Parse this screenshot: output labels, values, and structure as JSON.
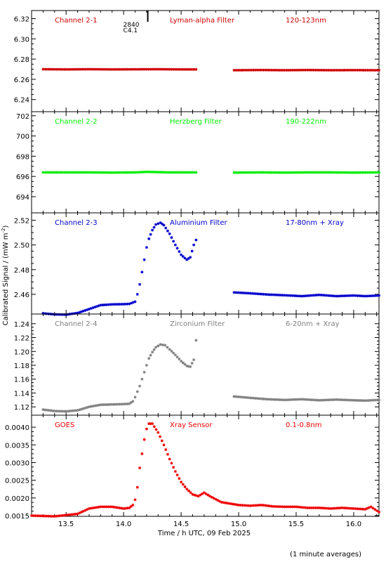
{
  "chart_data": [
    {
      "type": "scatter",
      "name": "Channel 2-1",
      "filter": "Lyman-alpha Filter",
      "band": "120-123nm",
      "color": "#d00000",
      "xlim": [
        13.2,
        16.22
      ],
      "ylim": [
        6.228,
        6.328
      ],
      "yticks": [
        6.24,
        6.26,
        6.28,
        6.3,
        6.32
      ],
      "ytick_labels": [
        "6.24",
        "6.26",
        "6.28",
        "6.30",
        "6.32"
      ],
      "marker": {
        "x": 14.21,
        "labels": [
          "2840",
          "C4.1"
        ]
      },
      "points": [
        [
          13.3,
          6.27
        ],
        [
          13.5,
          6.2698
        ],
        [
          13.7,
          6.27
        ],
        [
          13.9,
          6.2698
        ],
        [
          14.1,
          6.2699
        ],
        [
          14.3,
          6.27
        ],
        [
          14.5,
          6.2698
        ],
        [
          14.63,
          6.2698
        ],
        null,
        [
          14.96,
          6.269
        ],
        [
          15.2,
          6.2692
        ],
        [
          15.4,
          6.269
        ],
        [
          15.6,
          6.2692
        ],
        [
          15.8,
          6.269
        ],
        [
          16.0,
          6.2691
        ],
        [
          16.22,
          6.269
        ]
      ]
    },
    {
      "type": "scatter",
      "name": "Channel 2-2",
      "filter": "Herzberg Filter",
      "band": "190-222nm",
      "color": "#00ee00",
      "xlim": [
        13.2,
        16.22
      ],
      "ylim": [
        692.4,
        702.4
      ],
      "yticks": [
        694,
        696,
        698,
        700,
        702
      ],
      "ytick_labels": [
        "694",
        "696",
        "698",
        "700",
        "702"
      ],
      "points": [
        [
          13.3,
          696.4
        ],
        [
          13.5,
          696.4
        ],
        [
          13.7,
          696.4
        ],
        [
          13.9,
          696.38
        ],
        [
          14.1,
          696.4
        ],
        [
          14.2,
          696.45
        ],
        [
          14.4,
          696.4
        ],
        [
          14.63,
          696.4
        ],
        null,
        [
          14.96,
          696.38
        ],
        [
          15.2,
          696.4
        ],
        [
          15.4,
          696.38
        ],
        [
          15.6,
          696.4
        ],
        [
          15.8,
          696.4
        ],
        [
          16.0,
          696.38
        ],
        [
          16.22,
          696.4
        ]
      ]
    },
    {
      "type": "scatter",
      "name": "Channel 2-3",
      "filter": "Aluminium Filter",
      "band": "17-80nm + Xray",
      "color": "#0000cc",
      "xlim": [
        13.2,
        16.22
      ],
      "ylim": [
        2.444,
        2.526
      ],
      "yticks": [
        2.46,
        2.48,
        2.5,
        2.52
      ],
      "ytick_labels": [
        "2.46",
        "2.48",
        "2.50",
        "2.52"
      ],
      "points": [
        [
          13.3,
          2.4445
        ],
        [
          13.4,
          2.4437
        ],
        [
          13.5,
          2.4435
        ],
        [
          13.6,
          2.4448
        ],
        [
          13.7,
          2.448
        ],
        [
          13.8,
          2.4512
        ],
        [
          13.9,
          2.4518
        ],
        [
          14.0,
          2.452
        ],
        [
          14.05,
          2.4522
        ],
        [
          14.1,
          2.454
        ],
        [
          14.12,
          2.46
        ],
        [
          14.14,
          2.468
        ],
        [
          14.16,
          2.478
        ],
        [
          14.18,
          2.488
        ],
        [
          14.2,
          2.498
        ],
        [
          14.22,
          2.505
        ],
        [
          14.25,
          2.512
        ],
        [
          14.28,
          2.5165
        ],
        [
          14.32,
          2.518
        ],
        [
          14.35,
          2.516
        ],
        [
          14.4,
          2.509
        ],
        [
          14.45,
          2.5
        ],
        [
          14.5,
          2.492
        ],
        [
          14.55,
          2.488
        ],
        [
          14.58,
          2.49
        ],
        [
          14.61,
          2.5
        ],
        [
          14.63,
          2.504
        ],
        null,
        [
          14.96,
          2.4615
        ],
        [
          15.1,
          2.4608
        ],
        [
          15.25,
          2.4598
        ],
        [
          15.4,
          2.4592
        ],
        [
          15.55,
          2.4585
        ],
        [
          15.7,
          2.4595
        ],
        [
          15.85,
          2.4585
        ],
        [
          16.0,
          2.459
        ],
        [
          16.1,
          2.4585
        ],
        [
          16.22,
          2.459
        ]
      ]
    },
    {
      "type": "scatter",
      "name": "Channel 2-4",
      "filter": "Zirconium Filter",
      "band": "6-20nm + Xray",
      "color": "#808080",
      "xlim": [
        13.2,
        16.22
      ],
      "ylim": [
        1.108,
        1.254
      ],
      "yticks": [
        1.12,
        1.14,
        1.16,
        1.18,
        1.2,
        1.22,
        1.24
      ],
      "ytick_labels": [
        "1.12",
        "1.14",
        "1.16",
        "1.18",
        "1.20",
        "1.22",
        "1.24"
      ],
      "points": [
        [
          13.3,
          1.116
        ],
        [
          13.4,
          1.114
        ],
        [
          13.5,
          1.1135
        ],
        [
          13.6,
          1.115
        ],
        [
          13.7,
          1.12
        ],
        [
          13.8,
          1.123
        ],
        [
          13.9,
          1.1235
        ],
        [
          14.0,
          1.124
        ],
        [
          14.05,
          1.1245
        ],
        [
          14.08,
          1.128
        ],
        [
          14.1,
          1.134
        ],
        [
          14.12,
          1.142
        ],
        [
          14.14,
          1.15
        ],
        [
          14.16,
          1.16
        ],
        [
          14.18,
          1.17
        ],
        [
          14.2,
          1.18
        ],
        [
          14.22,
          1.19
        ],
        [
          14.25,
          1.199
        ],
        [
          14.28,
          1.206
        ],
        [
          14.32,
          1.21
        ],
        [
          14.36,
          1.209
        ],
        [
          14.4,
          1.203
        ],
        [
          14.45,
          1.195
        ],
        [
          14.5,
          1.186
        ],
        [
          14.55,
          1.179
        ],
        [
          14.58,
          1.178
        ],
        [
          14.61,
          1.188
        ],
        [
          14.63,
          1.216
        ],
        null,
        [
          14.96,
          1.135
        ],
        [
          15.1,
          1.133
        ],
        [
          15.25,
          1.131
        ],
        [
          15.4,
          1.13
        ],
        [
          15.55,
          1.131
        ],
        [
          15.7,
          1.1295
        ],
        [
          15.85,
          1.1305
        ],
        [
          16.0,
          1.1295
        ],
        [
          16.1,
          1.129
        ],
        [
          16.22,
          1.13
        ]
      ]
    },
    {
      "type": "scatter",
      "name": "GOES",
      "filter": "Xray Sensor",
      "band": "0.1-0.8nm",
      "color": "#ee0000",
      "xlim": [
        13.2,
        16.22
      ],
      "ylim": [
        0.00148,
        0.00434
      ],
      "yticks": [
        0.0015,
        0.002,
        0.0025,
        0.003,
        0.0035,
        0.004
      ],
      "ytick_labels": [
        "0.0015",
        "0.0020",
        "0.0025",
        "0.0030",
        "0.0035",
        "0.0040"
      ],
      "points": [
        [
          13.2,
          0.0015
        ],
        [
          13.4,
          0.00148
        ],
        [
          13.6,
          0.00155
        ],
        [
          13.7,
          0.0017
        ],
        [
          13.8,
          0.00175
        ],
        [
          13.9,
          0.00175
        ],
        [
          14.0,
          0.0017
        ],
        [
          14.05,
          0.00172
        ],
        [
          14.08,
          0.0018
        ],
        [
          14.1,
          0.00195
        ],
        [
          14.12,
          0.0023
        ],
        [
          14.14,
          0.00285
        ],
        [
          14.16,
          0.00325
        ],
        [
          14.18,
          0.00365
        ],
        [
          14.2,
          0.00395
        ],
        [
          14.22,
          0.0041
        ],
        [
          14.25,
          0.0041
        ],
        [
          14.3,
          0.00385
        ],
        [
          14.35,
          0.0035
        ],
        [
          14.4,
          0.0031
        ],
        [
          14.45,
          0.00275
        ],
        [
          14.5,
          0.00245
        ],
        [
          14.55,
          0.00225
        ],
        [
          14.6,
          0.0021
        ],
        [
          14.65,
          0.00205
        ],
        [
          14.7,
          0.00215
        ],
        [
          14.75,
          0.00205
        ],
        [
          14.85,
          0.00188
        ],
        [
          15.0,
          0.0018
        ],
        [
          15.1,
          0.00178
        ],
        [
          15.2,
          0.0018
        ],
        [
          15.3,
          0.00176
        ],
        [
          15.4,
          0.00175
        ],
        [
          15.5,
          0.00175
        ],
        [
          15.6,
          0.00172
        ],
        [
          15.7,
          0.00172
        ],
        [
          15.8,
          0.0017
        ],
        [
          15.9,
          0.00172
        ],
        [
          16.0,
          0.0017
        ],
        [
          16.1,
          0.00168
        ],
        [
          16.15,
          0.00175
        ],
        [
          16.22,
          0.0016
        ]
      ]
    }
  ],
  "xaxis": {
    "label": "Time / h UTC, 09 Feb 2025",
    "ticks": [
      13.5,
      14.0,
      14.5,
      15.0,
      15.5,
      16.0
    ],
    "tick_labels": [
      "13.5",
      "14.0",
      "14.5",
      "15.0",
      "15.5",
      "16.0"
    ]
  },
  "ylabel": "Calibrated Signal / (mW m",
  "ylabel_exponent": "-2",
  "ylabel_close": ")",
  "footnote": "(1 minute averages)"
}
